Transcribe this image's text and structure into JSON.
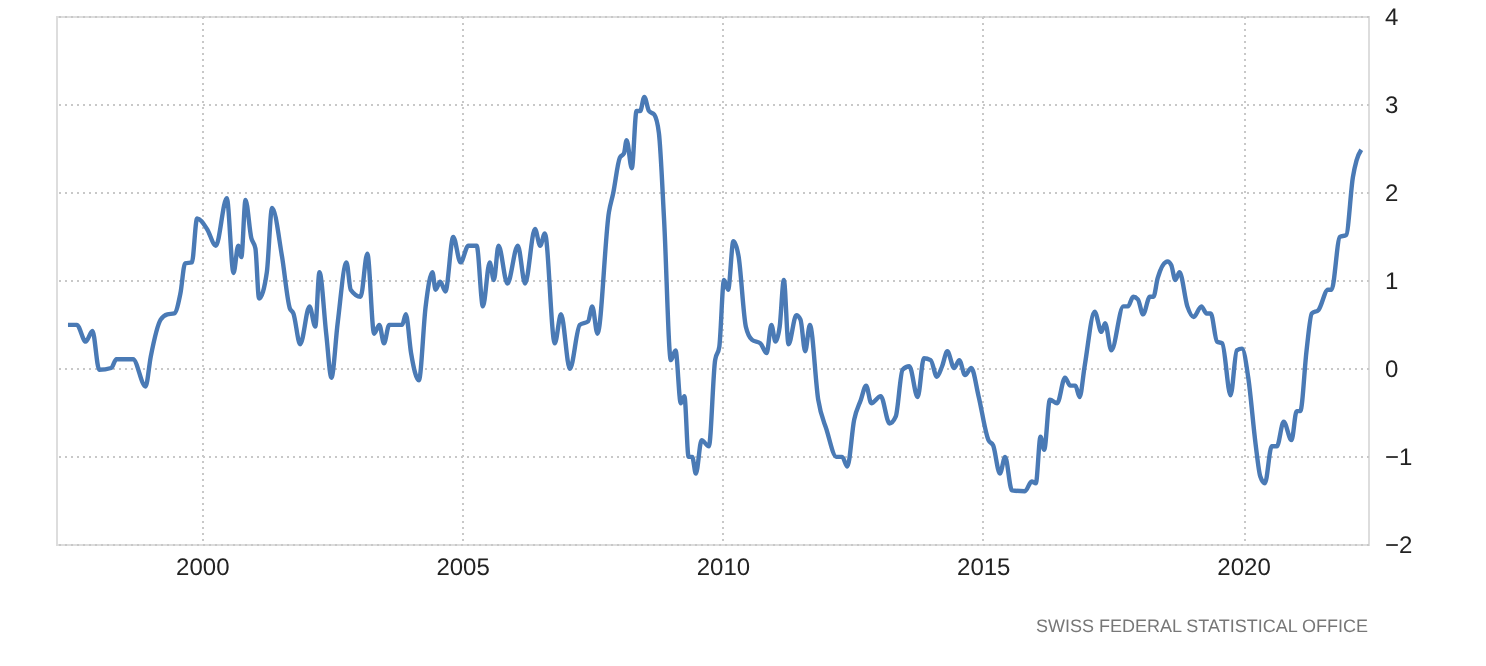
{
  "chart_data": {
    "type": "line",
    "x": [
      1997.43,
      1997.6,
      1997.77,
      1997.9,
      1998.03,
      1998.26,
      1998.36,
      1998.68,
      1998.92,
      1999.02,
      1999.21,
      1999.34,
      1999.47,
      1999.59,
      1999.68,
      1999.81,
      1999.91,
      2000.1,
      2000.27,
      2000.48,
      2000.61,
      2000.7,
      2000.76,
      2000.84,
      2000.95,
      2001.03,
      2001.1,
      2001.25,
      2001.35,
      2001.54,
      2001.69,
      2001.76,
      2001.89,
      2002.07,
      2002.18,
      2002.26,
      2002.39,
      2002.49,
      2002.61,
      2002.78,
      2002.86,
      2003.05,
      2003.18,
      2003.31,
      2003.41,
      2003.5,
      2003.6,
      2003.85,
      2003.92,
      2004.02,
      2004.17,
      2004.3,
      2004.43,
      2004.49,
      2004.58,
      2004.68,
      2004.83,
      2004.97,
      2005.12,
      2005.28,
      2005.4,
      2005.53,
      2005.61,
      2005.7,
      2005.87,
      2006.07,
      2006.21,
      2006.4,
      2006.5,
      2006.59,
      2006.78,
      2006.9,
      2007.07,
      2007.26,
      2007.42,
      2007.5,
      2007.6,
      2007.82,
      2007.9,
      2008.03,
      2008.11,
      2008.16,
      2008.26,
      2008.35,
      2008.42,
      2008.5,
      2008.59,
      2008.69,
      2008.78,
      2008.88,
      2009.01,
      2009.1,
      2009.2,
      2009.27,
      2009.35,
      2009.42,
      2009.49,
      2009.6,
      2009.74,
      2009.86,
      2009.94,
      2010.03,
      2010.11,
      2010.21,
      2010.31,
      2010.45,
      2010.57,
      2010.73,
      2010.85,
      2010.94,
      2011.02,
      2011.1,
      2011.18,
      2011.27,
      2011.42,
      2011.5,
      2011.59,
      2011.68,
      2011.84,
      2012.0,
      2012.19,
      2012.3,
      2012.4,
      2012.53,
      2012.66,
      2012.76,
      2012.86,
      2013.04,
      2013.21,
      2013.33,
      2013.46,
      2013.59,
      2013.75,
      2013.87,
      2014.0,
      2014.12,
      2014.22,
      2014.32,
      2014.45,
      2014.55,
      2014.66,
      2014.78,
      2014.92,
      2015.11,
      2015.2,
      2015.33,
      2015.43,
      2015.56,
      2015.81,
      2015.94,
      2016.02,
      2016.11,
      2016.18,
      2016.29,
      2016.43,
      2016.58,
      2016.68,
      2016.78,
      2016.86,
      2016.96,
      2017.15,
      2017.28,
      2017.35,
      2017.47,
      2017.7,
      2017.79,
      2017.89,
      2017.98,
      2018.08,
      2018.21,
      2018.28,
      2018.36,
      2018.55,
      2018.62,
      2018.7,
      2018.78,
      2018.93,
      2019.05,
      2019.2,
      2019.3,
      2019.38,
      2019.5,
      2019.6,
      2019.76,
      2019.88,
      2019.98,
      2020.1,
      2020.24,
      2020.33,
      2020.42,
      2020.55,
      2020.65,
      2020.78,
      2020.93,
      2021.03,
      2021.1,
      2021.22,
      2021.32,
      2021.45,
      2021.63,
      2021.7,
      2021.86,
      2021.98,
      2022.11,
      2022.18,
      2022.27
    ],
    "series": [
      {
        "color": "#4a7ab5",
        "values": [
          0.49,
          0.49,
          0.3,
          0.42,
          -0.02,
          0.0,
          0.1,
          0.1,
          -0.21,
          0.13,
          0.55,
          0.61,
          0.62,
          0.85,
          1.19,
          1.2,
          1.7,
          1.58,
          1.39,
          1.93,
          1.08,
          1.39,
          1.26,
          1.91,
          1.48,
          1.36,
          0.79,
          1.09,
          1.82,
          1.27,
          0.68,
          0.62,
          0.27,
          0.7,
          0.47,
          1.09,
          0.39,
          -0.11,
          0.51,
          1.2,
          0.89,
          0.81,
          1.3,
          0.39,
          0.49,
          0.28,
          0.49,
          0.49,
          0.61,
          0.17,
          -0.14,
          0.7,
          1.09,
          0.89,
          0.98,
          0.87,
          1.49,
          1.2,
          1.39,
          1.39,
          0.7,
          1.2,
          1.0,
          1.39,
          0.96,
          1.39,
          0.96,
          1.58,
          1.39,
          1.53,
          0.28,
          0.61,
          -0.01,
          0.49,
          0.53,
          0.7,
          0.39,
          1.77,
          1.98,
          2.39,
          2.44,
          2.59,
          2.27,
          2.92,
          2.92,
          3.08,
          2.92,
          2.88,
          2.67,
          1.68,
          0.09,
          0.2,
          -0.4,
          -0.32,
          -1.01,
          -1.01,
          -1.2,
          -0.82,
          -0.89,
          0.09,
          0.24,
          1.0,
          0.89,
          1.44,
          1.27,
          0.47,
          0.32,
          0.28,
          0.17,
          0.49,
          0.3,
          0.47,
          1.0,
          0.27,
          0.6,
          0.55,
          0.19,
          0.49,
          -0.36,
          -0.7,
          -1.01,
          -1.01,
          -1.12,
          -0.59,
          -0.36,
          -0.2,
          -0.4,
          -0.32,
          -0.63,
          -0.55,
          -0.02,
          0.02,
          -0.33,
          0.11,
          0.09,
          -0.1,
          0.02,
          0.19,
          0.0,
          0.09,
          -0.08,
          0.0,
          -0.32,
          -0.82,
          -0.88,
          -1.2,
          -1.01,
          -1.39,
          -1.4,
          -1.29,
          -1.31,
          -0.78,
          -0.93,
          -0.36,
          -0.4,
          -0.11,
          -0.2,
          -0.2,
          -0.33,
          0.03,
          0.64,
          0.41,
          0.51,
          0.2,
          0.7,
          0.7,
          0.81,
          0.78,
          0.61,
          0.81,
          0.81,
          1.02,
          1.21,
          1.17,
          1.0,
          1.09,
          0.7,
          0.58,
          0.7,
          0.62,
          0.62,
          0.3,
          0.28,
          -0.31,
          0.2,
          0.22,
          -0.11,
          -0.86,
          -1.23,
          -1.31,
          -0.89,
          -0.89,
          -0.61,
          -0.82,
          -0.49,
          -0.49,
          0.2,
          0.62,
          0.66,
          0.89,
          0.89,
          1.49,
          1.51,
          2.17,
          2.36,
          2.48
        ]
      }
    ],
    "xlim": [
      1997.2,
      2022.4
    ],
    "xticks": [
      2000,
      2005,
      2010,
      2015,
      2020
    ],
    "ylim": [
      -2,
      4
    ],
    "yticks": [
      -2,
      -1,
      0,
      1,
      2,
      3,
      4
    ],
    "grid": true,
    "legend": false,
    "annotations": [
      "SWISS FEDERAL STATISTICAL OFFICE"
    ]
  }
}
